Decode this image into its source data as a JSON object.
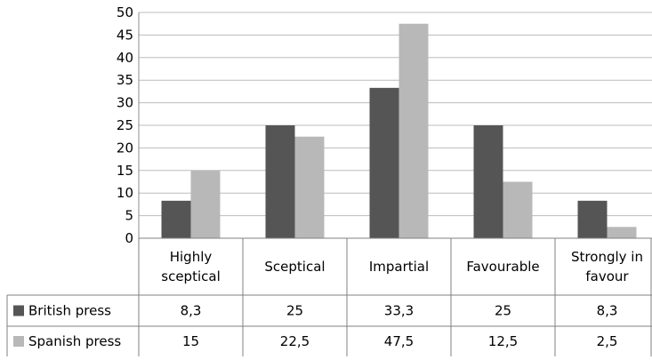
{
  "chart_data": {
    "type": "bar",
    "categories": [
      "Highly sceptical",
      "Sceptical",
      "Impartial",
      "Favourable",
      "Strongly in favour"
    ],
    "category_lines": [
      [
        "Highly",
        "sceptical"
      ],
      [
        "Sceptical"
      ],
      [
        "Impartial"
      ],
      [
        "Favourable"
      ],
      [
        "Strongly in",
        "favour"
      ]
    ],
    "series": [
      {
        "name": "British press",
        "values": [
          8.3,
          25,
          33.3,
          25,
          8.3
        ],
        "labels": [
          "8,3",
          "25",
          "33,3",
          "25",
          "8,3"
        ],
        "color": "#555555"
      },
      {
        "name": "Spanish press",
        "values": [
          15,
          22.5,
          47.5,
          12.5,
          2.5
        ],
        "labels": [
          "15",
          "22,5",
          "47,5",
          "12,5",
          "2,5"
        ],
        "color": "#b8b8b8"
      }
    ],
    "ylim": [
      0,
      50
    ],
    "yticks": [
      "0",
      "5",
      "10",
      "15",
      "20",
      "25",
      "30",
      "35",
      "40",
      "45",
      "50"
    ],
    "grid": true,
    "legend": "data-table"
  }
}
